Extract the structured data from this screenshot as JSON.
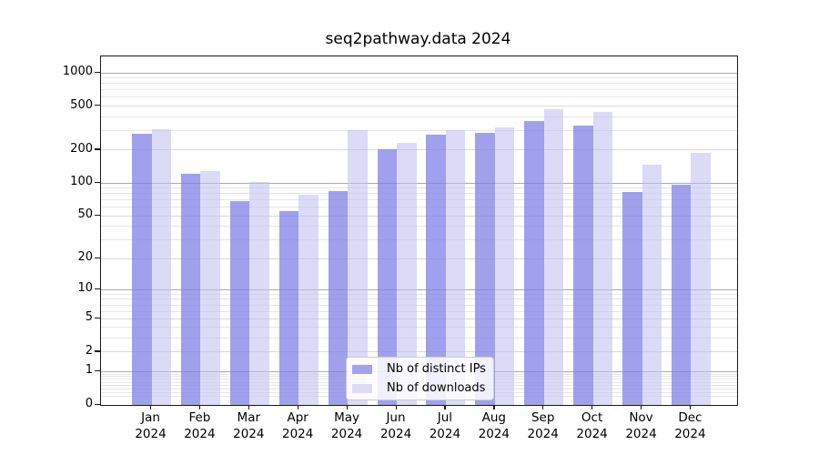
{
  "title": "seq2pathway.data 2024",
  "chart_data": {
    "type": "bar",
    "title": "seq2pathway.data 2024",
    "categories": [
      "Jan 2024",
      "Feb 2024",
      "Mar 2024",
      "Apr 2024",
      "May 2024",
      "Jun 2024",
      "Jul 2024",
      "Aug 2024",
      "Sep 2024",
      "Oct 2024",
      "Nov 2024",
      "Dec 2024"
    ],
    "series": [
      {
        "name": "Nb of distinct IPs",
        "color": "rgba(124,124,230,0.72)",
        "solid_color": "#a2a2ed",
        "values": [
          280,
          121,
          68,
          55,
          84,
          203,
          275,
          287,
          365,
          335,
          83,
          96
        ]
      },
      {
        "name": "Nb of downloads",
        "color": "rgba(190,190,240,0.55)",
        "solid_color": "#dbdbf7",
        "values": [
          310,
          128,
          102,
          78,
          305,
          232,
          305,
          318,
          465,
          445,
          147,
          189
        ]
      }
    ],
    "xlabel": "",
    "ylabel": "",
    "yscale": "log1p",
    "ylim": [
      0,
      1400
    ],
    "y_ticks": [
      0,
      1,
      2,
      5,
      10,
      20,
      50,
      100,
      200,
      500,
      1000
    ],
    "major_gridlines": [
      1,
      10,
      100,
      1000
    ],
    "mid_gridlines": [
      2,
      5,
      20,
      50,
      200,
      500
    ],
    "minor_gridlines": [
      0.2,
      0.3,
      0.4,
      0.5,
      0.6,
      0.7,
      0.8,
      0.9,
      3,
      4,
      6,
      7,
      8,
      9,
      30,
      40,
      60,
      70,
      80,
      90,
      300,
      400,
      600,
      700,
      800,
      900
    ],
    "grid": true,
    "legend_position": "lower center"
  },
  "legend": {
    "items": [
      {
        "label": "Nb of distinct IPs"
      },
      {
        "label": "Nb of downloads"
      }
    ]
  },
  "colors": {
    "ips_bar": "#a2a2ed",
    "downloads_bar": "#dbdbf7",
    "major_grid": "#ababab",
    "minor_grid": "#e7e7e7",
    "axis": "#1a1a1a",
    "background": "#ffffff"
  }
}
